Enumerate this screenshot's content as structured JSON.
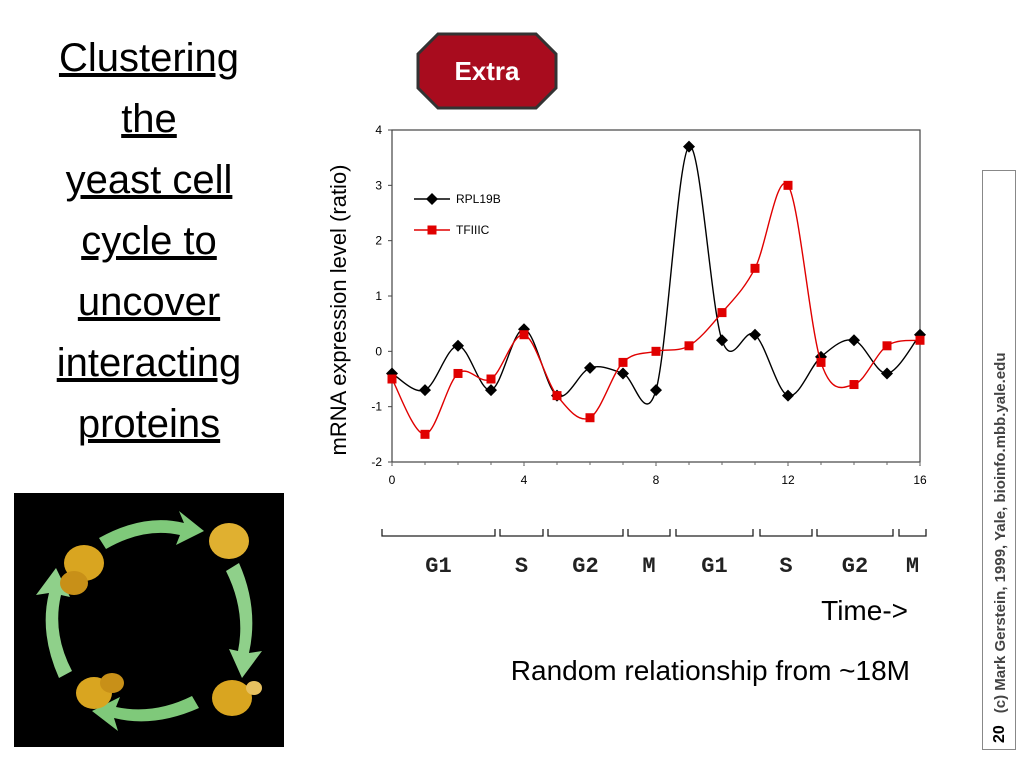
{
  "slide": {
    "title_lines": [
      "Clustering",
      "the",
      "yeast cell",
      "cycle to",
      "uncover",
      "interacting",
      "proteins"
    ],
    "badge": "Extra",
    "time_label": "Time->",
    "random_note": "Random relationship from ~18M",
    "page_number": "20",
    "credit": "(c) Mark Gerstein, 1999, Yale, bioinfo.mbb.yale.edu",
    "colors": {
      "badge_fill": "#a80c1e",
      "badge_stroke": "#333333",
      "series_black": "#000000",
      "series_red": "#e00000"
    }
  },
  "chart_data": {
    "type": "line",
    "ylabel": "mRNA expression level (ratio)",
    "xlabel": "",
    "xlim": [
      0,
      16
    ],
    "ylim": [
      -2,
      4
    ],
    "x_ticks": [
      "0",
      "4",
      "8",
      "12",
      "16"
    ],
    "y_ticks": [
      "4",
      "3",
      "2",
      "1",
      "0",
      "-1",
      "-2"
    ],
    "legend_position": "top-left",
    "series": [
      {
        "name": "RPL19B",
        "marker": "diamond",
        "x": [
          0,
          1,
          2,
          3,
          4,
          5,
          6,
          7,
          8,
          9,
          10,
          11,
          12,
          13,
          14,
          15,
          16
        ],
        "values": [
          -0.4,
          -0.7,
          0.1,
          -0.7,
          0.4,
          -0.8,
          -0.3,
          -0.4,
          -0.7,
          3.7,
          0.2,
          0.3,
          -0.8,
          -0.1,
          0.2,
          -0.4,
          0.3
        ]
      },
      {
        "name": "TFIIIC",
        "marker": "square",
        "x": [
          0,
          1,
          2,
          3,
          4,
          5,
          6,
          7,
          8,
          9,
          10,
          11,
          12,
          13,
          14,
          15,
          16
        ],
        "values": [
          -0.5,
          -1.5,
          -0.4,
          -0.5,
          0.3,
          -0.8,
          -1.2,
          -0.2,
          0.0,
          0.1,
          0.7,
          1.5,
          3.0,
          -0.2,
          -0.6,
          0.1,
          0.2
        ]
      }
    ],
    "phases": [
      "G1",
      "S",
      "G2",
      "M",
      "G1",
      "S",
      "G2",
      "M"
    ]
  }
}
